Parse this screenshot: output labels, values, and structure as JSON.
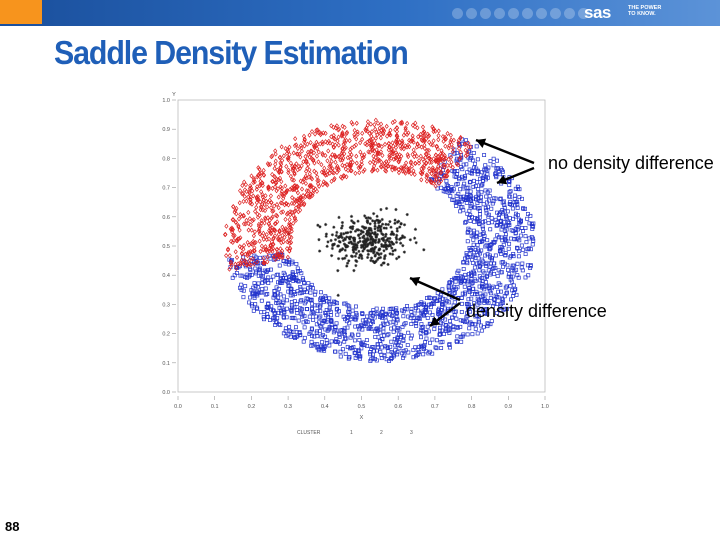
{
  "header": {
    "logo_text": "sas",
    "tagline": "THE POWER TO KNOW."
  },
  "slide": {
    "title": "Saddle Density Estimation",
    "page_number": "88"
  },
  "annotations": {
    "top": "no density difference",
    "bottom": "density difference"
  },
  "chart_data": {
    "type": "scatter",
    "title": "",
    "ylabel": "Y",
    "xlabel": "X",
    "xlim": [
      0.0,
      1.0
    ],
    "ylim": [
      0.0,
      1.0
    ],
    "x_ticks": [
      "0.0",
      "0.1",
      "0.2",
      "0.3",
      "0.4",
      "0.5",
      "0.6",
      "0.7",
      "0.8",
      "0.9",
      "1.0"
    ],
    "y_ticks": [
      "0.0",
      "0.1",
      "0.2",
      "0.3",
      "0.4",
      "0.5",
      "0.6",
      "0.7",
      "0.8",
      "0.9",
      "1.0"
    ],
    "legend_title": "CLUSTER",
    "series": [
      {
        "name": "1",
        "color": "#222222",
        "marker": "star",
        "shape": "central blob",
        "center": [
          0.52,
          0.52
        ],
        "spread": 0.06,
        "approx_count": 350
      },
      {
        "name": "2",
        "color": "#2233cc",
        "marker": "square",
        "shape": "lower half ring (plus right arc)",
        "center": [
          0.55,
          0.52
        ],
        "radius_range": [
          0.26,
          0.46
        ],
        "approx_count": 1600
      },
      {
        "name": "3",
        "color": "#dd2222",
        "marker": "diamond",
        "shape": "upper-left half ring",
        "center": [
          0.55,
          0.52
        ],
        "radius_range": [
          0.26,
          0.46
        ],
        "approx_count": 1100
      }
    ]
  }
}
